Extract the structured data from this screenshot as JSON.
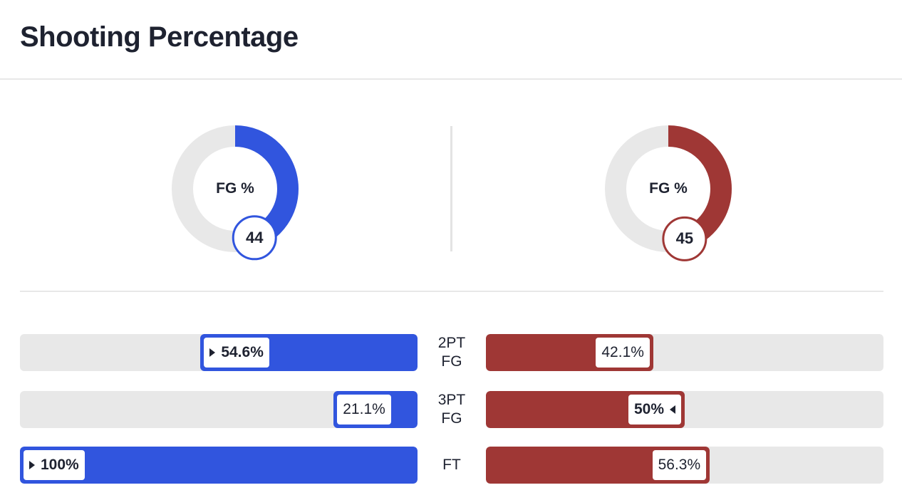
{
  "title": "Shooting Percentage",
  "colors": {
    "team_left": "#3155de",
    "team_right": "#9f3735",
    "track": "#e8e8e8",
    "text": "#1e2230"
  },
  "chart_data": [
    {
      "type": "pie",
      "label": "FG %",
      "teams": [
        {
          "side": "left",
          "value": 44,
          "value_label": "44",
          "color": "#3155de"
        },
        {
          "side": "right",
          "value": 45,
          "value_label": "45",
          "color": "#9f3735"
        }
      ]
    },
    {
      "type": "bar",
      "categories": [
        "2PT\nFG",
        "3PT\nFG",
        "FT"
      ],
      "series": [
        {
          "side": "left",
          "values": [
            54.6,
            21.1,
            100
          ],
          "labels": [
            "54.6%",
            "21.1%",
            "100%"
          ],
          "leader": [
            true,
            false,
            true
          ],
          "color": "#3155de"
        },
        {
          "side": "right",
          "values": [
            42.1,
            50,
            56.3
          ],
          "labels": [
            "42.1%",
            "50%",
            "56.3%"
          ],
          "leader": [
            false,
            true,
            false
          ],
          "color": "#9f3735"
        }
      ],
      "ylim": [
        0,
        100
      ]
    }
  ]
}
